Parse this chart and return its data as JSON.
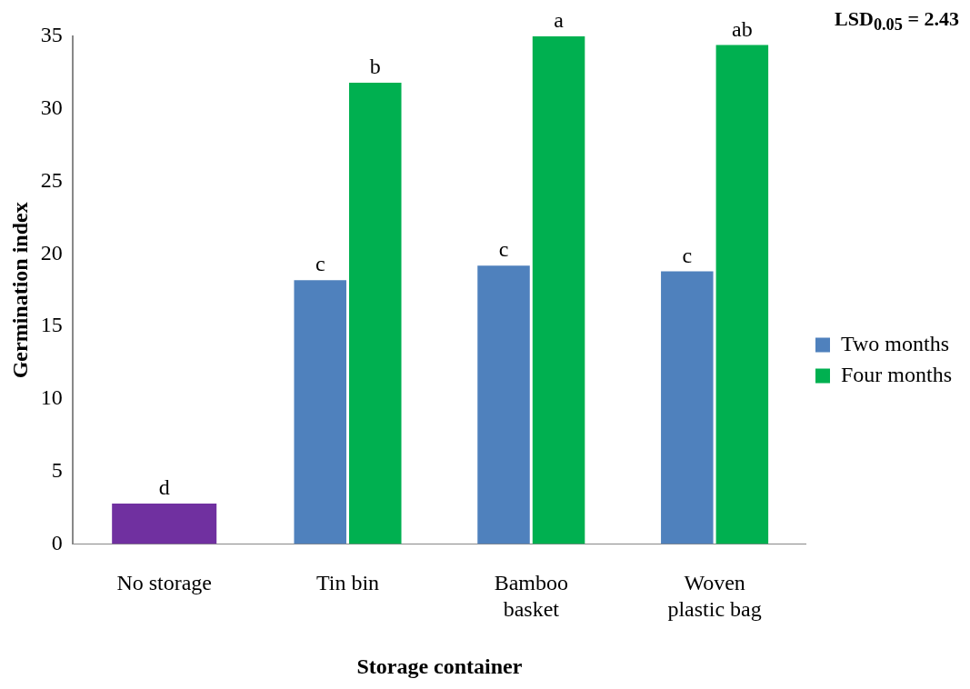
{
  "chart_data": {
    "type": "bar",
    "xlabel": "Storage container",
    "ylabel": "Germination index",
    "categories": [
      "No storage",
      "Tin bin",
      "Bamboo basket",
      "Woven plastic bag"
    ],
    "series": [
      {
        "name": "Two months",
        "color": "#4f81bd",
        "colors": [
          "#7030a0",
          "#4f81bd",
          "#4f81bd",
          "#4f81bd"
        ],
        "values": [
          2.8,
          18.2,
          19.2,
          18.8
        ]
      },
      {
        "name": "Four months",
        "color": "#00b050",
        "values": [
          null,
          31.8,
          35,
          34.4
        ]
      }
    ],
    "ylim": [
      0,
      35
    ],
    "yticks": [
      0,
      5,
      10,
      15,
      20,
      25,
      30,
      35
    ],
    "grid": false,
    "legend": "right",
    "annotations": [
      "LSD$_{0.05}$ = 2.43",
      {
        "text": "d",
        "x": "No storage",
        "y": 2.8
      },
      {
        "text": "c",
        "x": "Tin bin",
        "y": 18.2
      },
      {
        "text": "b",
        "x": "Tin bin",
        "y": 31.8
      },
      {
        "text": "c",
        "x": "Bamboo basket",
        "y": 19.2
      },
      {
        "text": "a",
        "x": "Bamboo basket",
        "y": 35
      },
      {
        "text": "c",
        "x": "Woven plastic bag",
        "y": 18.8
      },
      {
        "text": "ab",
        "x": "Woven plastic bag",
        "y": 34.4
      }
    ]
  }
}
